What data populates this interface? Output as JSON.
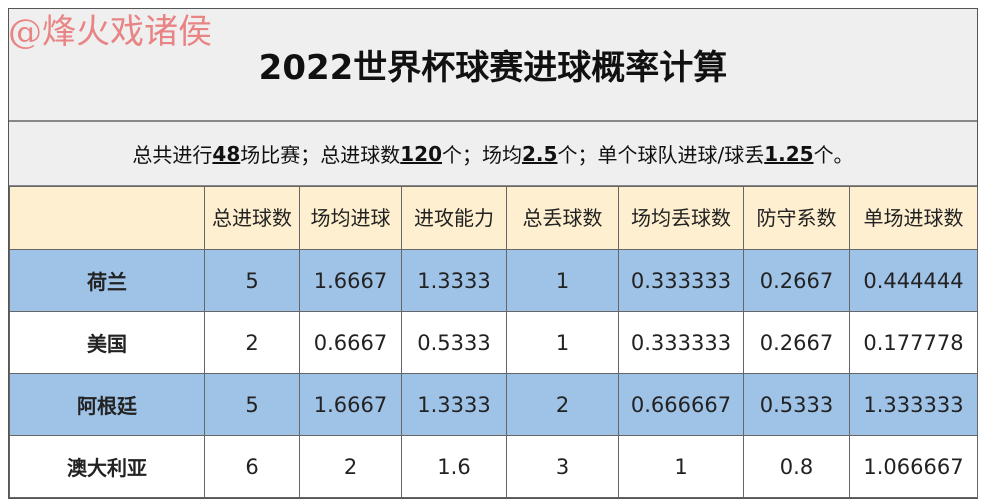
{
  "watermark": "@烽火戏诸侯",
  "title": "2022世界杯球赛进球概率计算",
  "summary": {
    "p1": "总共进行",
    "v1": "48",
    "p2": "场比赛；总进球数",
    "v2": "120",
    "p3": "个；场均",
    "v3": "2.5",
    "p4": "个；单个球队进球/球丢",
    "v4": "1.25",
    "p5": "个。"
  },
  "headers": [
    "",
    "总进球数",
    "场均进球",
    "进攻能力",
    "总丢球数",
    "场均丢球数",
    "防守系数",
    "单场进球数"
  ],
  "rows": [
    {
      "cells": [
        "荷兰",
        "5",
        "1.6667",
        "1.3333",
        "1",
        "0.333333",
        "0.2667",
        "0.444444"
      ],
      "style": "blue"
    },
    {
      "cells": [
        "美国",
        "2",
        "0.6667",
        "0.5333",
        "1",
        "0.333333",
        "0.2667",
        "0.177778"
      ],
      "style": "white"
    },
    {
      "cells": [
        "阿根廷",
        "5",
        "1.6667",
        "1.3333",
        "2",
        "0.666667",
        "0.5333",
        "1.333333"
      ],
      "style": "blue"
    },
    {
      "cells": [
        "澳大利亚",
        "6",
        "2",
        "1.6",
        "3",
        "1",
        "0.8",
        "1.066667"
      ],
      "style": "white"
    }
  ],
  "colors": {
    "header_bg": "#fdefcf",
    "blue_row": "#9fc2e7",
    "title_bg": "#efefef"
  }
}
